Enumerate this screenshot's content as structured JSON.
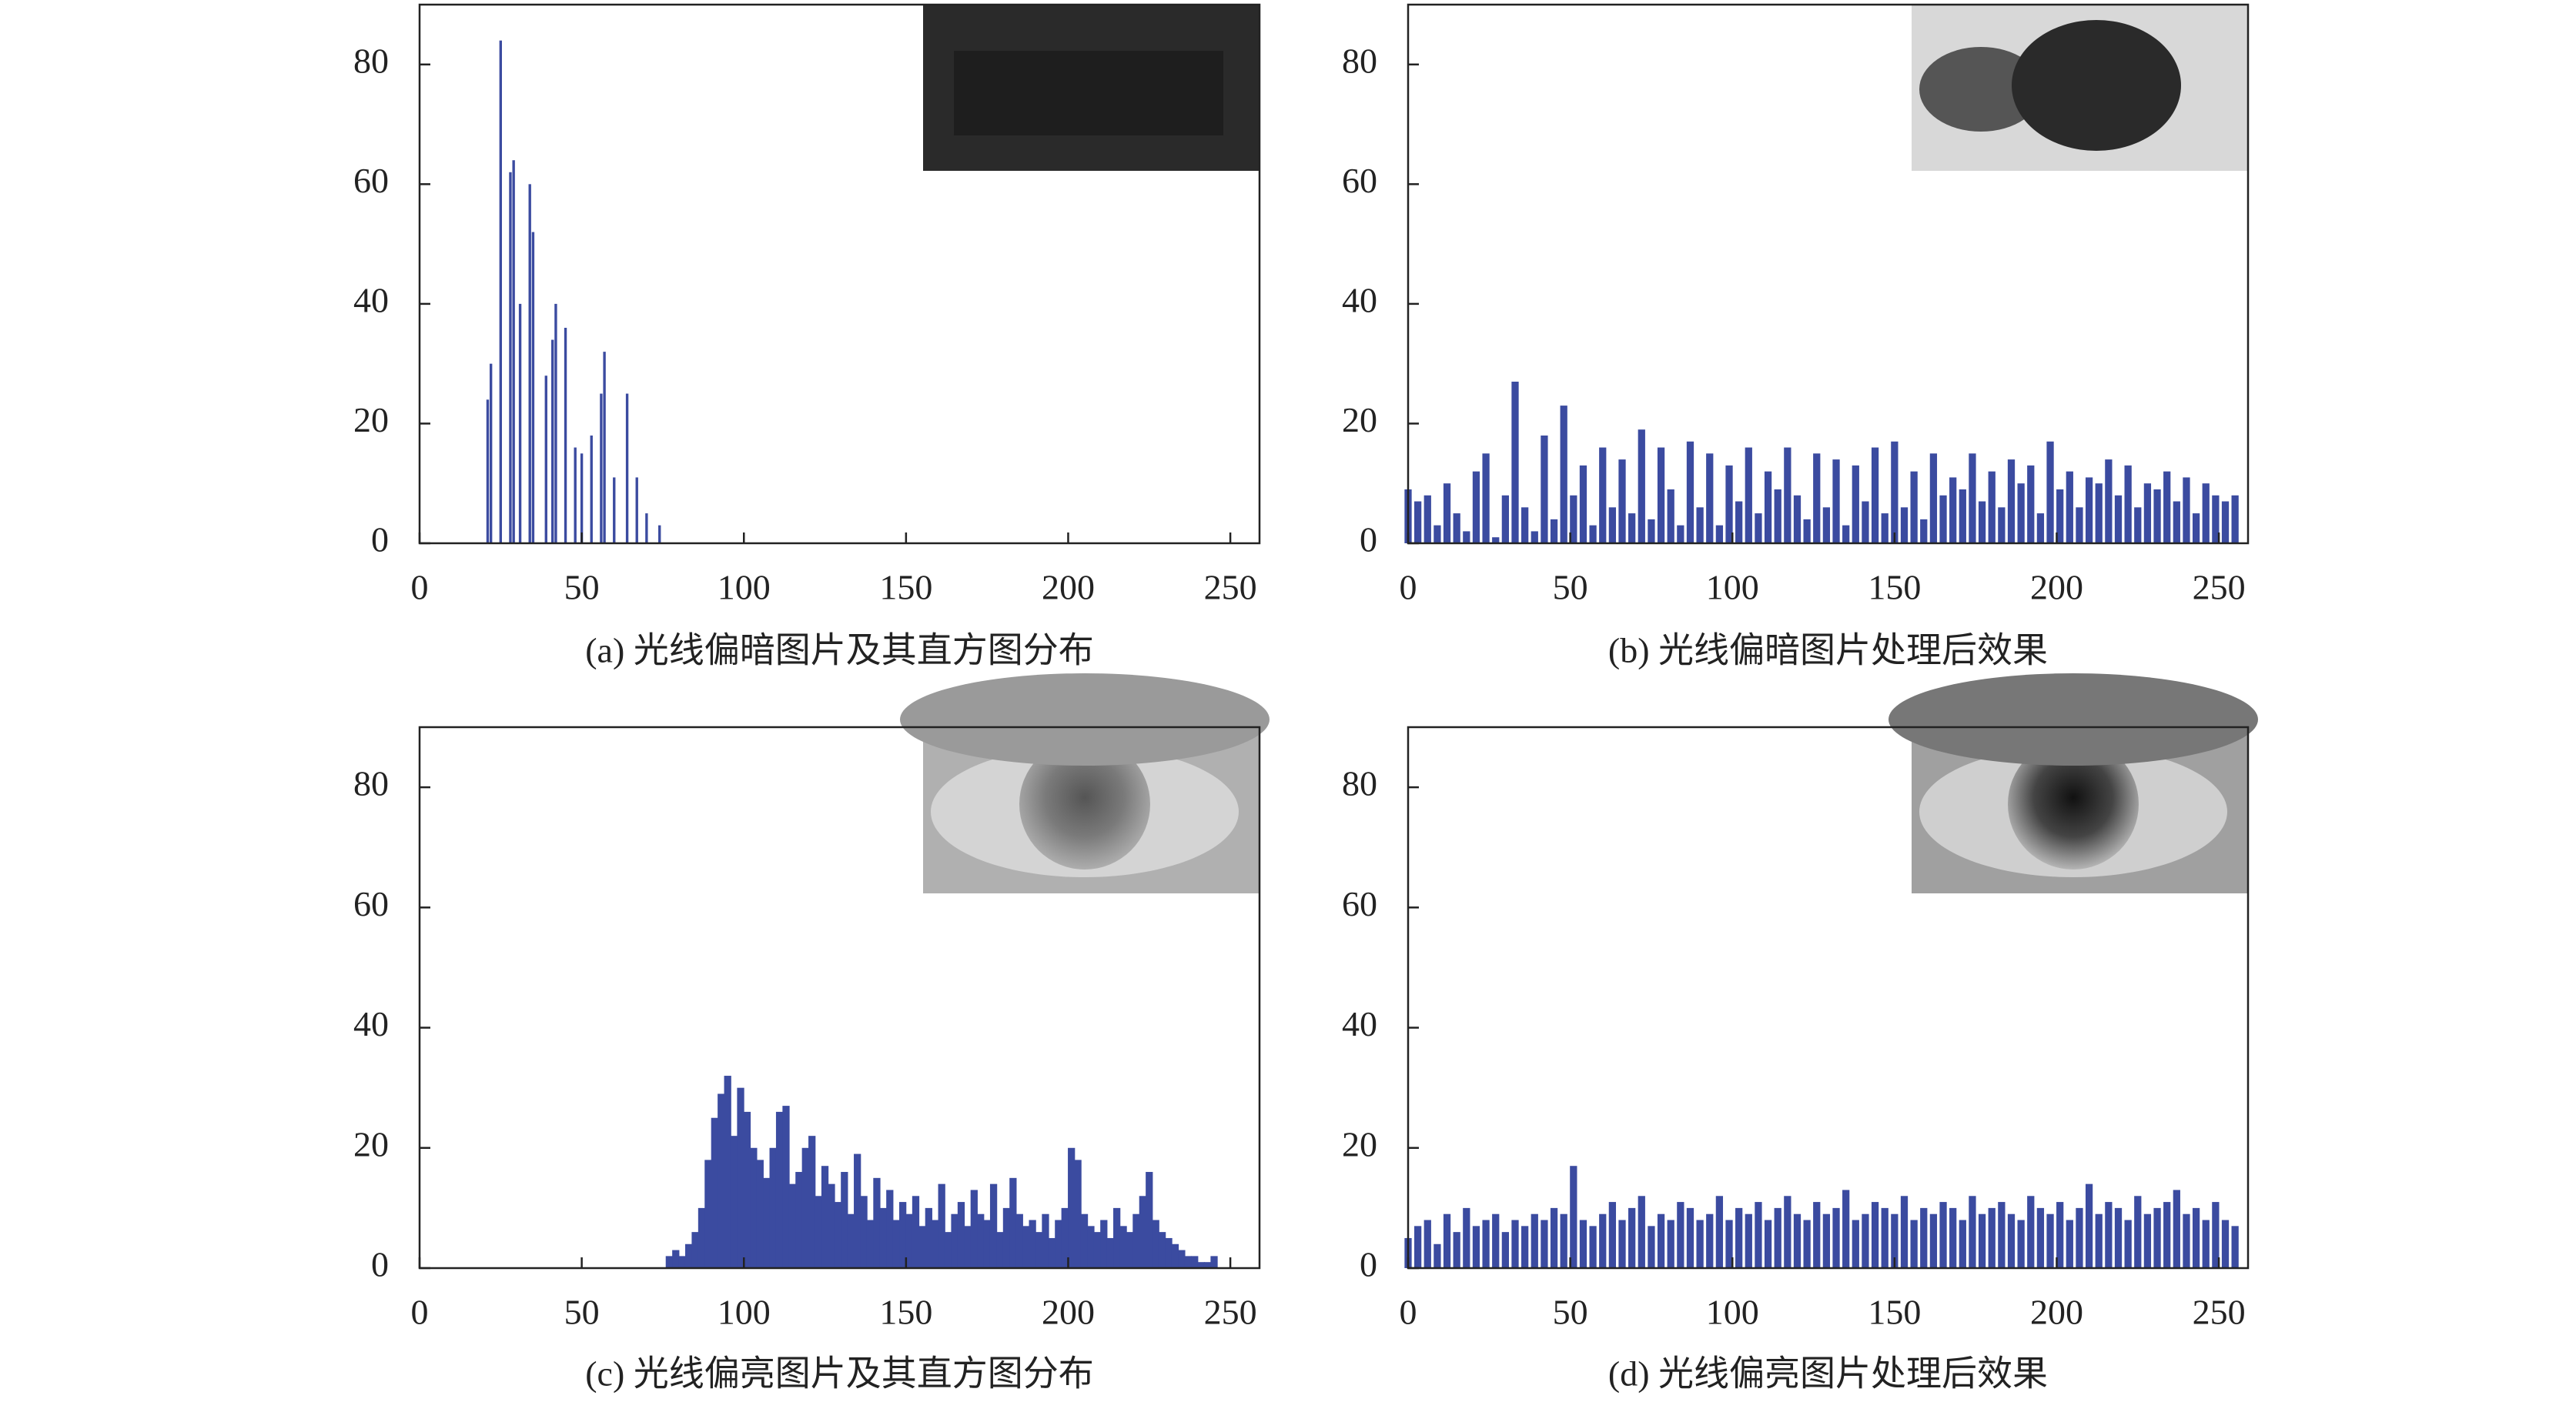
{
  "chart_data": [
    {
      "type": "bar",
      "title": "(a) 光线偏暗图片及其直方图分布",
      "color": "#3b4ba0",
      "x": [
        21,
        22,
        25,
        28,
        29,
        31,
        34,
        35,
        39,
        41,
        42,
        45,
        48,
        50,
        53,
        56,
        57,
        60,
        64,
        67,
        70,
        74
      ],
      "values": [
        24,
        30,
        84,
        62,
        64,
        40,
        60,
        52,
        28,
        34,
        40,
        36,
        16,
        15,
        18,
        25,
        32,
        11,
        25,
        11,
        5,
        3
      ],
      "xlim": [
        0,
        259
      ],
      "ylim": [
        0,
        90
      ],
      "xticks": [
        0,
        50,
        100,
        150,
        200,
        250
      ],
      "yticks": [
        0,
        20,
        40,
        60,
        80
      ]
    },
    {
      "type": "bar",
      "title": "(b) 光线偏暗图片处理后效果",
      "color": "#3b4ba0",
      "x": [
        0,
        3,
        6,
        9,
        12,
        15,
        18,
        21,
        24,
        27,
        30,
        33,
        36,
        39,
        42,
        45,
        48,
        51,
        54,
        57,
        60,
        63,
        66,
        69,
        72,
        75,
        78,
        81,
        84,
        87,
        90,
        93,
        96,
        99,
        102,
        105,
        108,
        111,
        114,
        117,
        120,
        123,
        126,
        129,
        132,
        135,
        138,
        141,
        144,
        147,
        150,
        153,
        156,
        159,
        162,
        165,
        168,
        171,
        174,
        177,
        180,
        183,
        186,
        189,
        192,
        195,
        198,
        201,
        204,
        207,
        210,
        213,
        216,
        219,
        222,
        225,
        228,
        231,
        234,
        237,
        240,
        243,
        246,
        249,
        252,
        255
      ],
      "values": [
        9,
        7,
        8,
        3,
        10,
        5,
        2,
        12,
        15,
        1,
        8,
        27,
        6,
        2,
        18,
        4,
        23,
        8,
        13,
        3,
        16,
        6,
        14,
        5,
        19,
        4,
        16,
        9,
        3,
        17,
        6,
        15,
        3,
        13,
        7,
        16,
        5,
        12,
        9,
        16,
        8,
        4,
        15,
        6,
        14,
        3,
        13,
        7,
        16,
        5,
        17,
        6,
        12,
        4,
        15,
        8,
        11,
        9,
        15,
        7,
        12,
        6,
        14,
        10,
        13,
        5,
        17,
        9,
        12,
        6,
        11,
        10,
        14,
        8,
        13,
        6,
        10,
        9,
        12,
        7,
        11,
        5,
        10,
        8,
        7,
        8
      ],
      "xlim": [
        0,
        259
      ],
      "ylim": [
        0,
        90
      ],
      "xticks": [
        0,
        50,
        100,
        150,
        200,
        250
      ],
      "yticks": [
        0,
        20,
        40,
        60,
        80
      ]
    },
    {
      "type": "bar",
      "title": "(c) 光线偏亮图片及其直方图分布",
      "color": "#3b4ba0",
      "x": [
        77,
        79,
        81,
        83,
        85,
        87,
        89,
        91,
        93,
        95,
        97,
        99,
        101,
        103,
        105,
        107,
        109,
        111,
        113,
        115,
        117,
        119,
        121,
        123,
        125,
        127,
        129,
        131,
        133,
        135,
        137,
        139,
        141,
        143,
        145,
        147,
        149,
        151,
        153,
        155,
        157,
        159,
        161,
        163,
        165,
        167,
        169,
        171,
        173,
        175,
        177,
        179,
        181,
        183,
        185,
        187,
        189,
        191,
        193,
        195,
        197,
        199,
        201,
        203,
        205,
        207,
        209,
        211,
        213,
        215,
        217,
        219,
        221,
        223,
        225,
        227,
        229,
        231,
        233,
        235,
        237,
        239,
        241,
        243,
        245
      ],
      "values": [
        2,
        3,
        2,
        4,
        6,
        10,
        18,
        25,
        29,
        32,
        22,
        30,
        26,
        20,
        18,
        15,
        20,
        26,
        27,
        14,
        16,
        20,
        22,
        12,
        17,
        14,
        11,
        16,
        9,
        19,
        12,
        8,
        15,
        10,
        13,
        8,
        11,
        9,
        12,
        7,
        10,
        8,
        14,
        6,
        9,
        11,
        7,
        13,
        9,
        8,
        14,
        6,
        10,
        15,
        9,
        7,
        8,
        6,
        9,
        5,
        8,
        10,
        20,
        18,
        9,
        7,
        6,
        8,
        5,
        10,
        7,
        6,
        9,
        12,
        16,
        8,
        6,
        5,
        4,
        3,
        2,
        2,
        1,
        1,
        2
      ],
      "xlim": [
        0,
        259
      ],
      "ylim": [
        0,
        90
      ],
      "xticks": [
        0,
        50,
        100,
        150,
        200,
        250
      ],
      "yticks": [
        0,
        20,
        40,
        60,
        80
      ]
    },
    {
      "type": "bar",
      "title": "(d) 光线偏亮图片处理后效果",
      "color": "#3b4ba0",
      "x": [
        0,
        3,
        6,
        9,
        12,
        15,
        18,
        21,
        24,
        27,
        30,
        33,
        36,
        39,
        42,
        45,
        48,
        51,
        54,
        57,
        60,
        63,
        66,
        69,
        72,
        75,
        78,
        81,
        84,
        87,
        90,
        93,
        96,
        99,
        102,
        105,
        108,
        111,
        114,
        117,
        120,
        123,
        126,
        129,
        132,
        135,
        138,
        141,
        144,
        147,
        150,
        153,
        156,
        159,
        162,
        165,
        168,
        171,
        174,
        177,
        180,
        183,
        186,
        189,
        192,
        195,
        198,
        201,
        204,
        207,
        210,
        213,
        216,
        219,
        222,
        225,
        228,
        231,
        234,
        237,
        240,
        243,
        246,
        249,
        252,
        255
      ],
      "values": [
        5,
        7,
        8,
        4,
        9,
        6,
        10,
        7,
        8,
        9,
        6,
        8,
        7,
        9,
        8,
        10,
        9,
        17,
        8,
        7,
        9,
        11,
        8,
        10,
        12,
        7,
        9,
        8,
        11,
        10,
        8,
        9,
        12,
        8,
        10,
        9,
        11,
        8,
        10,
        12,
        9,
        8,
        11,
        9,
        10,
        13,
        8,
        9,
        11,
        10,
        9,
        12,
        8,
        10,
        9,
        11,
        10,
        8,
        12,
        9,
        10,
        11,
        9,
        8,
        12,
        10,
        9,
        11,
        8,
        10,
        14,
        9,
        11,
        10,
        8,
        12,
        9,
        10,
        11,
        13,
        9,
        10,
        8,
        11,
        8,
        7
      ],
      "xlim": [
        0,
        259
      ],
      "ylim": [
        0,
        90
      ],
      "xticks": [
        0,
        50,
        100,
        150,
        200,
        250
      ],
      "yticks": [
        0,
        20,
        40,
        60,
        80
      ]
    }
  ]
}
